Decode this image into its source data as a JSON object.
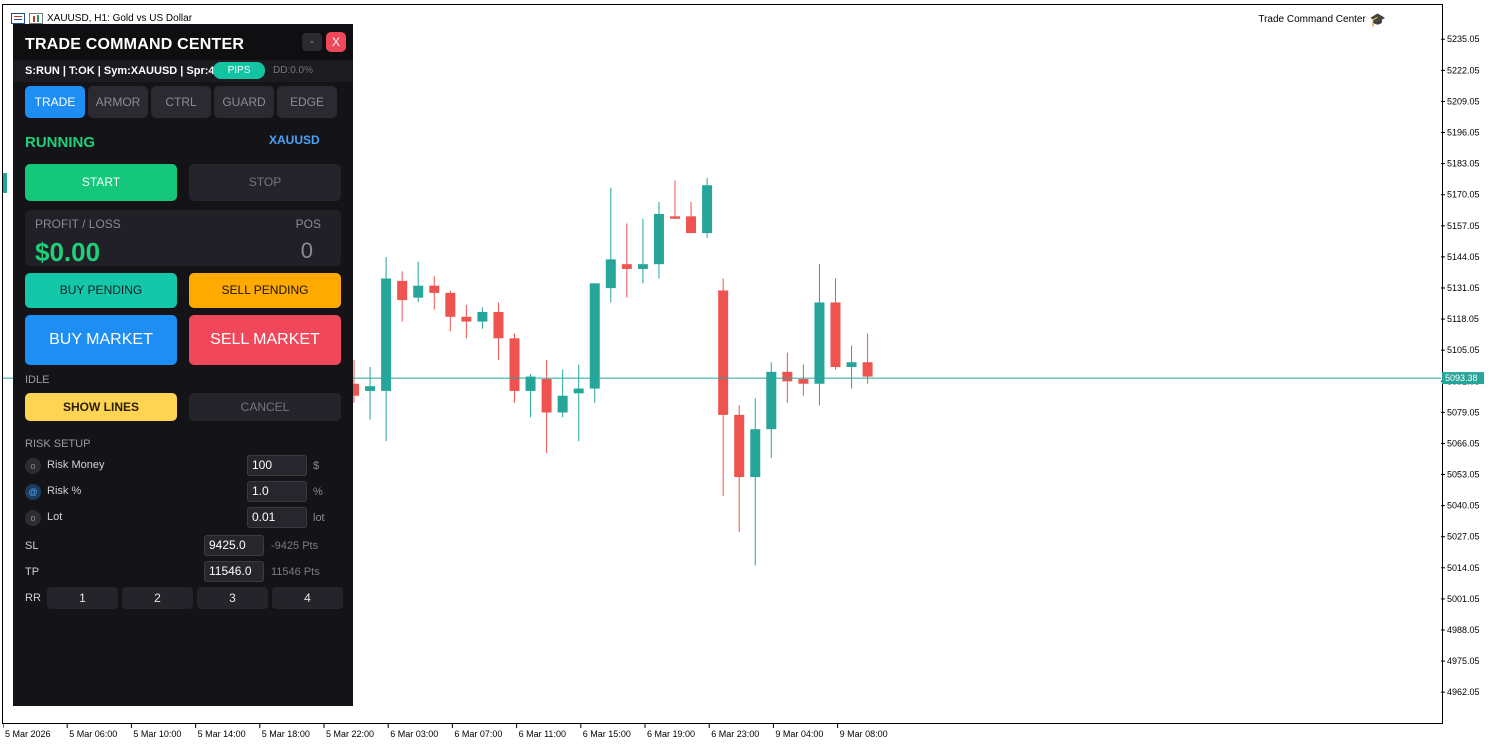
{
  "window": {
    "title": "XAUUSD, H1:  Gold vs US Dollar",
    "ea_name": "Trade Command Center"
  },
  "panel": {
    "title": "TRADE COMMAND CENTER",
    "minimize_label": "-",
    "close_label": "X",
    "status": "S:RUN | T:OK | Sym:XAUUSD | Spr:4",
    "pips_badge": "PIPS",
    "drawdown": "DD:0.0%",
    "tabs": [
      {
        "label": "TRADE",
        "active": true
      },
      {
        "label": "ARMOR",
        "active": false
      },
      {
        "label": "CTRL",
        "active": false
      },
      {
        "label": "GUARD",
        "active": false
      },
      {
        "label": "EDGE",
        "active": false
      }
    ],
    "state": "RUNNING",
    "symbol": "XAUUSD",
    "start_label": "START",
    "stop_label": "STOP",
    "profit_loss_label": "PROFIT / LOSS",
    "profit_loss_value": "$0.00",
    "pos_label": "POS",
    "pos_value": "0",
    "buy_pending_label": "BUY PENDING",
    "sell_pending_label": "SELL PENDING",
    "buy_market_label": "BUY MARKET",
    "sell_market_label": "SELL MARKET",
    "mode": "IDLE",
    "show_lines_label": "SHOW LINES",
    "cancel_label": "CANCEL",
    "risk": {
      "title": "RISK SETUP",
      "options": [
        {
          "radio": "o",
          "label": "Risk Money",
          "value": "100",
          "unit": "$",
          "selected": false
        },
        {
          "radio": "@",
          "label": "Risk %",
          "value": "1.0",
          "unit": "%",
          "selected": true
        },
        {
          "radio": "o",
          "label": "Lot",
          "value": "0.01",
          "unit": "lot",
          "selected": false
        }
      ],
      "sl_label": "SL",
      "sl_value": "9425.0",
      "sl_points": "-9425 Pts",
      "tp_label": "TP",
      "tp_value": "11546.0",
      "tp_points": "11546 Pts",
      "rr_label": "RR",
      "rr_buttons": [
        "1",
        "2",
        "3",
        "4"
      ]
    }
  },
  "colors": {
    "bull": "#26a69a",
    "bear": "#ef5350",
    "price_line": "#26a69a",
    "accent_blue": "#1e8ef5",
    "accent_green": "#1fd07a"
  },
  "chart_data": {
    "type": "candlestick",
    "symbol": "XAUUSD",
    "timeframe": "H1",
    "ylim": [
      4950,
      5241
    ],
    "current_price": 5093.38,
    "current_price_label": "5093.38",
    "price_ticks": [
      "5235.05",
      "5222.05",
      "5209.05",
      "5196.05",
      "5183.05",
      "5170.05",
      "5157.05",
      "5144.05",
      "5131.05",
      "5118.05",
      "5105.05",
      "5092.05",
      "5079.05",
      "5066.05",
      "5053.05",
      "5040.05",
      "5027.05",
      "5014.05",
      "5001.05",
      "4988.05",
      "4975.05",
      "4962.05"
    ],
    "time_ticks": [
      "5 Mar 2026",
      "5 Mar 06:00",
      "5 Mar 10:00",
      "5 Mar 14:00",
      "5 Mar 18:00",
      "5 Mar 22:00",
      "6 Mar 03:00",
      "6 Mar 07:00",
      "6 Mar 11:00",
      "6 Mar 15:00",
      "6 Mar 19:00",
      "6 Mar 23:00",
      "9 Mar 04:00",
      "9 Mar 08:00"
    ],
    "candles": [
      {
        "o": 5091,
        "h": 5101,
        "l": 5083,
        "c": 5086
      },
      {
        "o": 5088,
        "h": 5098,
        "l": 5076,
        "c": 5090
      },
      {
        "o": 5088,
        "h": 5144,
        "l": 5067,
        "c": 5135
      },
      {
        "o": 5134,
        "h": 5138,
        "l": 5117,
        "c": 5126
      },
      {
        "o": 5127,
        "h": 5142,
        "l": 5125,
        "c": 5132
      },
      {
        "o": 5132,
        "h": 5136,
        "l": 5122,
        "c": 5129
      },
      {
        "o": 5129,
        "h": 5130,
        "l": 5113,
        "c": 5119
      },
      {
        "o": 5119,
        "h": 5124,
        "l": 5110,
        "c": 5117
      },
      {
        "o": 5117,
        "h": 5123,
        "l": 5114,
        "c": 5121
      },
      {
        "o": 5121,
        "h": 5125,
        "l": 5101,
        "c": 5110
      },
      {
        "o": 5110,
        "h": 5112,
        "l": 5083,
        "c": 5088
      },
      {
        "o": 5088,
        "h": 5095,
        "l": 5077,
        "c": 5094
      },
      {
        "o": 5093,
        "h": 5101,
        "l": 5062,
        "c": 5079
      },
      {
        "o": 5079,
        "h": 5097,
        "l": 5077,
        "c": 5086
      },
      {
        "o": 5087,
        "h": 5099,
        "l": 5067,
        "c": 5089
      },
      {
        "o": 5089,
        "h": 5133,
        "l": 5083,
        "c": 5133
      },
      {
        "o": 5131,
        "h": 5173,
        "l": 5125,
        "c": 5143
      },
      {
        "o": 5141,
        "h": 5158,
        "l": 5127,
        "c": 5139
      },
      {
        "o": 5139,
        "h": 5160,
        "l": 5133,
        "c": 5141
      },
      {
        "o": 5141,
        "h": 5167,
        "l": 5135,
        "c": 5162
      },
      {
        "o": 5161,
        "h": 5176,
        "l": 5160,
        "c": 5160
      },
      {
        "o": 5161,
        "h": 5167,
        "l": 5154,
        "c": 5154
      },
      {
        "o": 5154,
        "h": 5177,
        "l": 5152,
        "c": 5174
      },
      {
        "o": 5130,
        "h": 5135,
        "l": 5044,
        "c": 5078
      },
      {
        "o": 5078,
        "h": 5082,
        "l": 5029,
        "c": 5052
      },
      {
        "o": 5052,
        "h": 5085,
        "l": 5015,
        "c": 5072
      },
      {
        "o": 5072,
        "h": 5100,
        "l": 5060,
        "c": 5096
      },
      {
        "o": 5096,
        "h": 5104,
        "l": 5083,
        "c": 5092
      },
      {
        "o": 5093,
        "h": 5099,
        "l": 5086,
        "c": 5091
      },
      {
        "o": 5091,
        "h": 5141,
        "l": 5082,
        "c": 5125
      },
      {
        "o": 5125,
        "h": 5135,
        "l": 5097,
        "c": 5098
      },
      {
        "o": 5098,
        "h": 5107,
        "l": 5089,
        "c": 5100
      },
      {
        "o": 5100,
        "h": 5112,
        "l": 5091,
        "c": 5094
      }
    ]
  }
}
